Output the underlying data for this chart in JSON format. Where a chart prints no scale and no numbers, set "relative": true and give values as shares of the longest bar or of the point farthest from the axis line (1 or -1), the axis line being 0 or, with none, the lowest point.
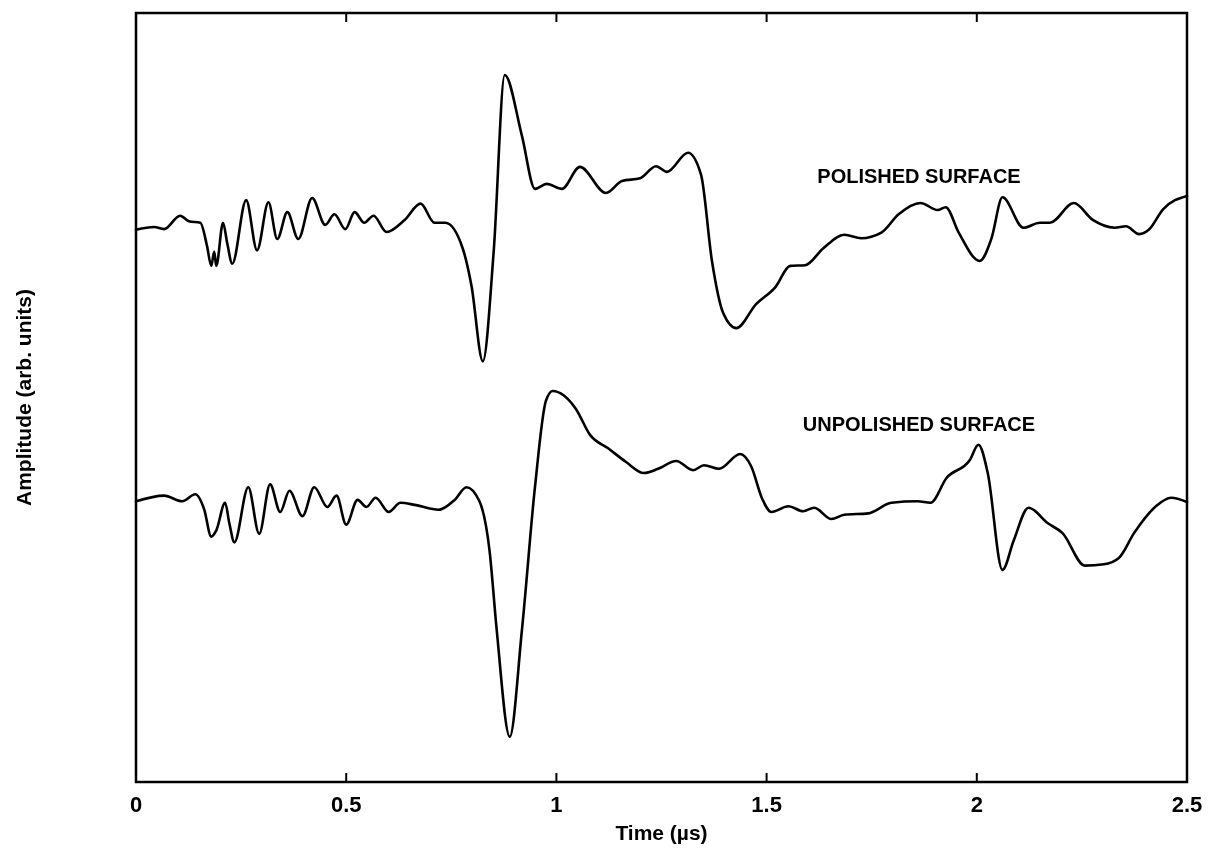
{
  "chart_data": {
    "type": "line",
    "relative": true,
    "xlabel": "Time  (µs)",
    "ylabel": "Amplitude  (arb. units)",
    "xlim": [
      0,
      2.5
    ],
    "xticks": [
      0,
      0.5,
      1,
      1.5,
      2,
      2.5
    ],
    "grid": false,
    "legend": false,
    "marker": "none",
    "line_style": "solid",
    "series": [
      {
        "name": "POLISHED SURFACE",
        "color": "#000000",
        "x": [
          0,
          0.043,
          0.067,
          0.105,
          0.126,
          0.153,
          0.169,
          0.179,
          0.186,
          0.191,
          0.207,
          0.217,
          0.229,
          0.262,
          0.288,
          0.315,
          0.336,
          0.36,
          0.386,
          0.419,
          0.45,
          0.472,
          0.498,
          0.52,
          0.543,
          0.565,
          0.596,
          0.639,
          0.677,
          0.71,
          0.736,
          0.777,
          0.798,
          0.825,
          0.851,
          0.877,
          0.918,
          0.949,
          0.977,
          1.013,
          1.056,
          1.118,
          1.156,
          1.199,
          1.237,
          1.263,
          1.313,
          1.344,
          1.37,
          1.397,
          1.428,
          1.475,
          1.521,
          1.556,
          1.592,
          1.635,
          1.685,
          1.725,
          1.773,
          1.814,
          1.866,
          1.907,
          1.926,
          1.957,
          2.007,
          2.035,
          2.061,
          2.111,
          2.15,
          2.174,
          2.231,
          2.276,
          2.328,
          2.355,
          2.386,
          2.409,
          2.443,
          2.5
        ],
        "values": [
          0.781,
          0.785,
          0.782,
          0.801,
          0.793,
          0.791,
          0.758,
          0.73,
          0.75,
          0.73,
          0.791,
          0.762,
          0.733,
          0.823,
          0.752,
          0.82,
          0.768,
          0.806,
          0.768,
          0.826,
          0.788,
          0.803,
          0.782,
          0.806,
          0.791,
          0.801,
          0.778,
          0.795,
          0.818,
          0.791,
          0.791,
          0.755,
          0.702,
          0.595,
          0.752,
          1.0,
          0.914,
          0.839,
          0.846,
          0.839,
          0.87,
          0.833,
          0.85,
          0.854,
          0.871,
          0.863,
          0.89,
          0.859,
          0.737,
          0.663,
          0.642,
          0.676,
          0.7,
          0.73,
          0.731,
          0.755,
          0.774,
          0.769,
          0.777,
          0.803,
          0.819,
          0.809,
          0.813,
          0.777,
          0.737,
          0.769,
          0.827,
          0.784,
          0.791,
          0.791,
          0.819,
          0.795,
          0.784,
          0.786,
          0.775,
          0.781,
          0.81,
          0.829
        ]
      },
      {
        "name": "UNPOLISHED SURFACE",
        "color": "#000000",
        "x": [
          0,
          0.067,
          0.11,
          0.141,
          0.162,
          0.179,
          0.191,
          0.212,
          0.222,
          0.234,
          0.267,
          0.293,
          0.319,
          0.343,
          0.365,
          0.396,
          0.424,
          0.455,
          0.477,
          0.5,
          0.527,
          0.548,
          0.57,
          0.601,
          0.629,
          0.663,
          0.72,
          0.758,
          0.786,
          0.817,
          0.841,
          0.858,
          0.889,
          0.918,
          0.949,
          0.975,
          0.991,
          1.046,
          1.08,
          1.123,
          1.165,
          1.208,
          1.242,
          1.285,
          1.325,
          1.351,
          1.387,
          1.437,
          1.463,
          1.49,
          1.511,
          1.552,
          1.587,
          1.613,
          1.654,
          1.685,
          1.742,
          1.797,
          1.859,
          1.89,
          1.928,
          1.983,
          2.004,
          2.026,
          2.061,
          2.088,
          2.123,
          2.169,
          2.204,
          2.257,
          2.302,
          2.338,
          2.374,
          2.426,
          2.462,
          2.5
        ],
        "values": [
          0.397,
          0.405,
          0.397,
          0.407,
          0.386,
          0.347,
          0.356,
          0.395,
          0.366,
          0.339,
          0.417,
          0.351,
          0.421,
          0.382,
          0.412,
          0.376,
          0.417,
          0.389,
          0.405,
          0.364,
          0.399,
          0.389,
          0.402,
          0.382,
          0.395,
          0.392,
          0.385,
          0.399,
          0.417,
          0.397,
          0.327,
          0.215,
          0.064,
          0.215,
          0.417,
          0.539,
          0.553,
          0.528,
          0.491,
          0.472,
          0.453,
          0.437,
          0.443,
          0.454,
          0.441,
          0.448,
          0.443,
          0.464,
          0.447,
          0.4,
          0.382,
          0.39,
          0.383,
          0.388,
          0.372,
          0.378,
          0.38,
          0.395,
          0.397,
          0.395,
          0.43,
          0.455,
          0.477,
          0.437,
          0.3,
          0.342,
          0.388,
          0.366,
          0.352,
          0.306,
          0.308,
          0.317,
          0.352,
          0.39,
          0.402,
          0.396
        ]
      }
    ]
  }
}
